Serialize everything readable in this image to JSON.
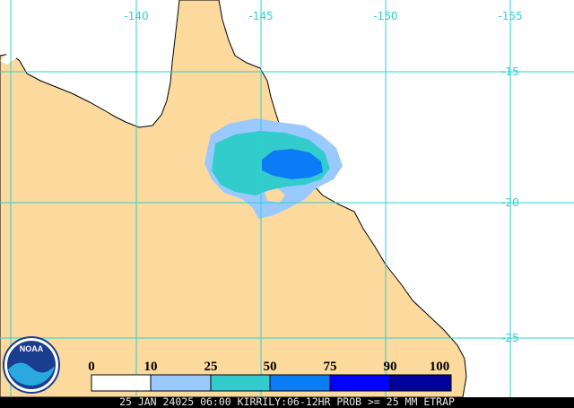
{
  "map": {
    "lon_labels": [
      "-140",
      "-145",
      "-150",
      "-155"
    ],
    "lat_labels": [
      "-15",
      "-20",
      "-25"
    ]
  },
  "legend": {
    "labels": [
      "0",
      "10",
      "25",
      "50",
      "75",
      "90",
      "100"
    ],
    "colors": [
      "#ffffff",
      "#99c9ff",
      "#33cccc",
      "#0a7cf5",
      "#0000ff",
      "#00009c"
    ]
  },
  "logo": "NOAA",
  "caption": "25 JAN 24025 06:00 KIRRILY:06-12HR PROB >= 25 MM ETRAP"
}
